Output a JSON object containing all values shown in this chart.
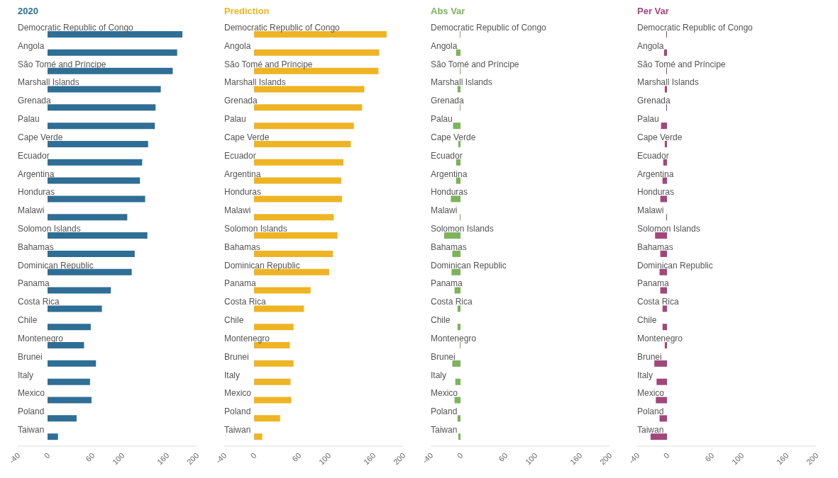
{
  "chart_data": [
    {
      "type": "bar",
      "orientation": "horizontal",
      "title": "2020",
      "color": "#2f6e95",
      "categories": [
        "Democratic Republic of Congo",
        "Angola",
        "São Tomé and Príncipe",
        "Marshall Islands",
        "Grenada",
        "Palau",
        "Cape Verde",
        "Ecuador",
        "Argentina",
        "Honduras",
        "Malawi",
        "Solomon Islands",
        "Bahamas",
        "Dominican Republic",
        "Panama",
        "Costa Rica",
        "Chile",
        "Montenegro",
        "Brunei",
        "Italy",
        "Mexico",
        "Poland",
        "Taiwan"
      ],
      "values": [
        181,
        174,
        168,
        152,
        145,
        144,
        135,
        127,
        124,
        131,
        107,
        134,
        117,
        113,
        85,
        73,
        58,
        49,
        65,
        57,
        59,
        39,
        14
      ],
      "xlim": [
        -40,
        200
      ],
      "xticks": [
        -40,
        0,
        60,
        100,
        160,
        200
      ]
    },
    {
      "type": "bar",
      "orientation": "horizontal",
      "title": "Prediction",
      "color": "#eeb424",
      "categories": [
        "Democratic Republic of Congo",
        "Angola",
        "São Tomé and Príncipe",
        "Marshall Islands",
        "Grenada",
        "Palau",
        "Cape Verde",
        "Ecuador",
        "Argentina",
        "Honduras",
        "Malawi",
        "Solomon Islands",
        "Bahamas",
        "Dominican Republic",
        "Panama",
        "Costa Rica",
        "Chile",
        "Montenegro",
        "Brunei",
        "Italy",
        "Mexico",
        "Poland",
        "Taiwan"
      ],
      "values": [
        178,
        168,
        167,
        148,
        145,
        134,
        130,
        120,
        117,
        118,
        107,
        112,
        106,
        101,
        76,
        67,
        53,
        48,
        53,
        49,
        50,
        35,
        11
      ],
      "xlim": [
        -40,
        200
      ],
      "xticks": [
        -40,
        0,
        60,
        100,
        160,
        200
      ]
    },
    {
      "type": "bar",
      "orientation": "horizontal",
      "title": "Abs Var",
      "color": "#7db35b",
      "categories": [
        "Democratic Republic of Congo",
        "Angola",
        "São Tomé and Príncipe",
        "Marshall Islands",
        "Grenada",
        "Palau",
        "Cape Verde",
        "Ecuador",
        "Argentina",
        "Honduras",
        "Malawi",
        "Solomon Islands",
        "Bahamas",
        "Dominican Republic",
        "Panama",
        "Costa Rica",
        "Chile",
        "Montenegro",
        "Brunei",
        "Italy",
        "Mexico",
        "Poland",
        "Taiwan"
      ],
      "values": [
        -1,
        -6,
        -1,
        -4,
        -1,
        -10,
        -3,
        -6,
        -6,
        -13,
        -1,
        -22,
        -11,
        -12,
        -8,
        -4,
        -4,
        -1,
        -11,
        -7,
        -8,
        -4,
        -3
      ],
      "xlim": [
        -40,
        200
      ],
      "xticks": [
        -40,
        0,
        60,
        100,
        160,
        200
      ]
    },
    {
      "type": "bar",
      "orientation": "horizontal",
      "title": "Per Var",
      "color": "#a2477b",
      "categories": [
        "Democratic Republic of Congo",
        "Angola",
        "São Tomé and Príncipe",
        "Marshall Islands",
        "Grenada",
        "Palau",
        "Cape Verde",
        "Ecuador",
        "Argentina",
        "Honduras",
        "Malawi",
        "Solomon Islands",
        "Bahamas",
        "Dominican Republic",
        "Panama",
        "Costa Rica",
        "Chile",
        "Montenegro",
        "Brunei",
        "Italy",
        "Mexico",
        "Poland",
        "Taiwan"
      ],
      "values": [
        -1,
        -4,
        -1,
        -3,
        -1,
        -8,
        -3,
        -5,
        -6,
        -9,
        -1,
        -16,
        -9,
        -10,
        -9,
        -6,
        -6,
        -3,
        -17,
        -14,
        -15,
        -10,
        -22
      ],
      "xlim": [
        -40,
        200
      ],
      "xticks": [
        -40,
        0,
        60,
        100,
        160,
        200
      ]
    }
  ]
}
